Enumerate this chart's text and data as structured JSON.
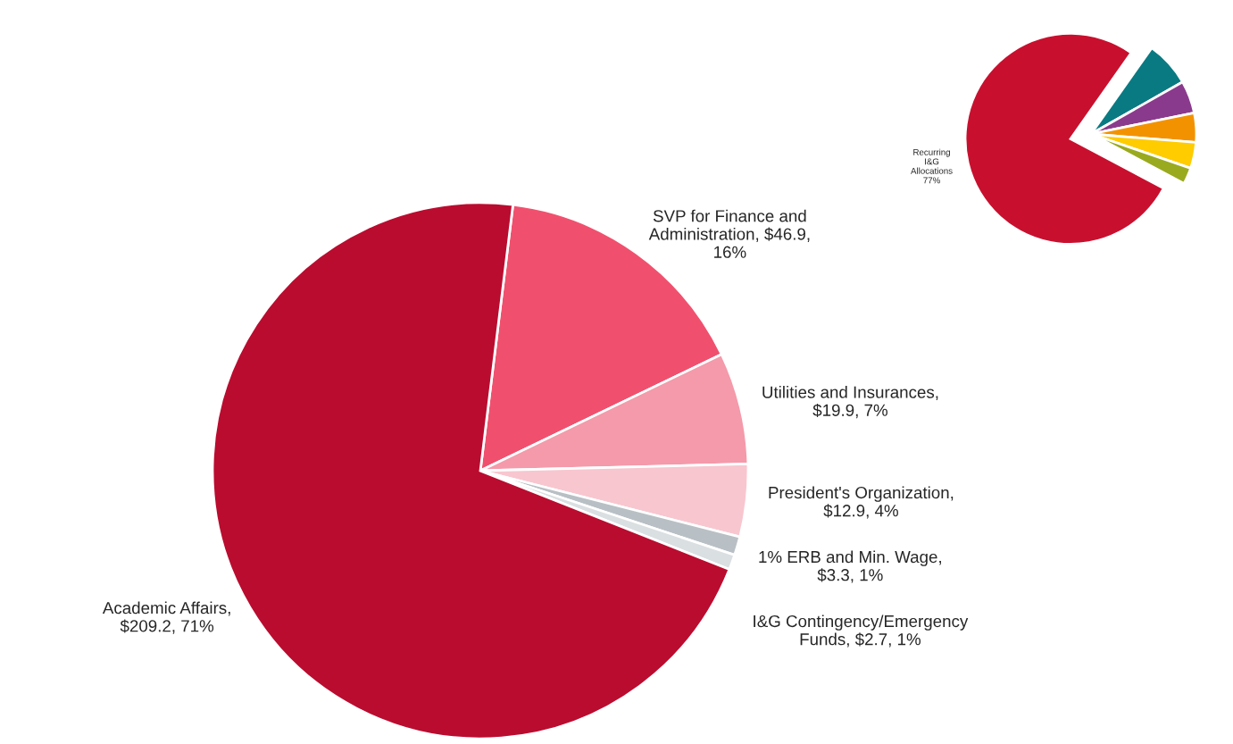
{
  "chart_data": [
    {
      "type": "pie",
      "categories": [
        "SVP for Finance and\nAdministration, $46.9,\n16%",
        "Utilities and Insurances,\n$19.9, 7%",
        "President's Organization,\n$12.9, 4%",
        "1% ERB and Min. Wage,\n$3.3, 1%",
        "I&G Contingency/Emergency\nFunds, $2.7, 1%",
        "Academic Affairs,\n$209.2, 71%"
      ],
      "values": [
        46.9,
        19.9,
        12.9,
        3.3,
        2.7,
        209.2
      ],
      "colors": [
        "#f0506e",
        "#f49aaa",
        "#f8c6cf",
        "#b9c0c5",
        "#dadfe2",
        "#ba0c2f"
      ]
    },
    {
      "type": "pie",
      "categories": [
        "Recurring\nI&G\nAllocations\n77%",
        null,
        null,
        null,
        null,
        null
      ],
      "values": [
        77,
        7,
        5,
        4.5,
        4,
        2.5
      ],
      "colors": [
        "#c8102e",
        "#0a7a82",
        "#8a3a8c",
        "#f39200",
        "#ffcc00",
        "#9aaa1e"
      ]
    }
  ]
}
